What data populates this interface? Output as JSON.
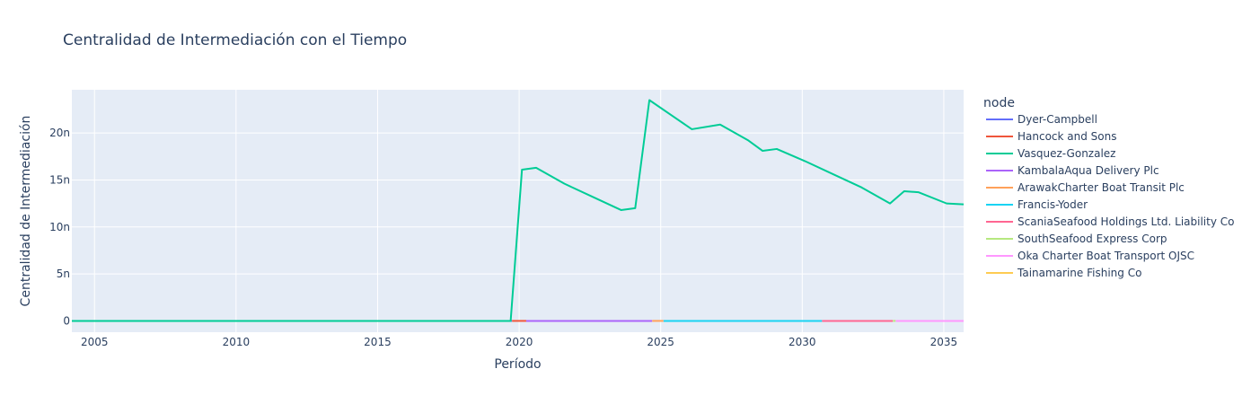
{
  "chart_data": {
    "type": "line",
    "title": "Centralidad de Intermediación con el Tiempo",
    "xlabel": "Período",
    "ylabel": "Centralidad de Intermediación",
    "xlim": [
      2004.2,
      2035.7
    ],
    "ylim": [
      -1.2e-09,
      2.46e-08
    ],
    "x_ticks": [
      2005,
      2010,
      2015,
      2020,
      2025,
      2030,
      2035
    ],
    "x_tick_labels": [
      "2005",
      "2010",
      "2015",
      "2020",
      "2025",
      "2030",
      "2035"
    ],
    "y_ticks": [
      0,
      5e-09,
      1e-08,
      1.5e-08,
      2e-08
    ],
    "y_tick_labels": [
      "0",
      "5n",
      "10n",
      "15n",
      "20n"
    ],
    "grid": true,
    "legend_title": "node",
    "legend_position": "right",
    "series": [
      {
        "name": "Dyer-Campbell",
        "color": "#636efa",
        "x": [
          2004.2,
          2019.75
        ],
        "y": [
          0,
          0
        ]
      },
      {
        "name": "Hancock and Sons",
        "color": "#ef553b",
        "x": [
          2019.75,
          2020.25
        ],
        "y": [
          0,
          0
        ]
      },
      {
        "name": "Vasquez-Gonzalez",
        "color": "#00cc96",
        "x": [
          2004.2,
          2019.7,
          2020.1,
          2020.6,
          2021.6,
          2022.6,
          2023.6,
          2024.1,
          2024.6,
          2026.1,
          2027.1,
          2028.1,
          2028.6,
          2029.1,
          2030.1,
          2031.1,
          2032.1,
          2033.1,
          2033.6,
          2034.1,
          2035.1,
          2035.7
        ],
        "y": [
          0,
          0,
          1.61e-08,
          1.63e-08,
          1.46e-08,
          1.32e-08,
          1.18e-08,
          1.2e-08,
          2.35e-08,
          2.04e-08,
          2.09e-08,
          1.92e-08,
          1.81e-08,
          1.83e-08,
          1.7e-08,
          1.56e-08,
          1.42e-08,
          1.25e-08,
          1.38e-08,
          1.37e-08,
          1.25e-08,
          1.24e-08
        ]
      },
      {
        "name": "KambalaAqua Delivery Plc",
        "color": "#ab63fa",
        "x": [
          2020.25,
          2024.7
        ],
        "y": [
          0,
          0
        ]
      },
      {
        "name": "ArawakCharter Boat Transit Plc",
        "color": "#ffa15a",
        "x": [
          2024.7,
          2025.1
        ],
        "y": [
          0,
          0
        ]
      },
      {
        "name": "Francis-Yoder",
        "color": "#19d3f3",
        "x": [
          2025.1,
          2030.7
        ],
        "y": [
          0,
          0
        ]
      },
      {
        "name": "ScaniaSeafood Holdings Ltd. Liability Co",
        "color": "#ff6692",
        "x": [
          2030.7,
          2033.2
        ],
        "y": [
          0,
          0
        ]
      },
      {
        "name": "SouthSeafood Express Corp",
        "color": "#b6e880",
        "x": [
          2033.2,
          2033.3
        ],
        "y": [
          0,
          0
        ]
      },
      {
        "name": "Oka Charter Boat Transport OJSC",
        "color": "#ff97ff",
        "x": [
          2033.3,
          2035.7
        ],
        "y": [
          0,
          0
        ]
      },
      {
        "name": "Tainamarine Fishing Co",
        "color": "#fecb52",
        "x": [],
        "y": []
      }
    ]
  }
}
